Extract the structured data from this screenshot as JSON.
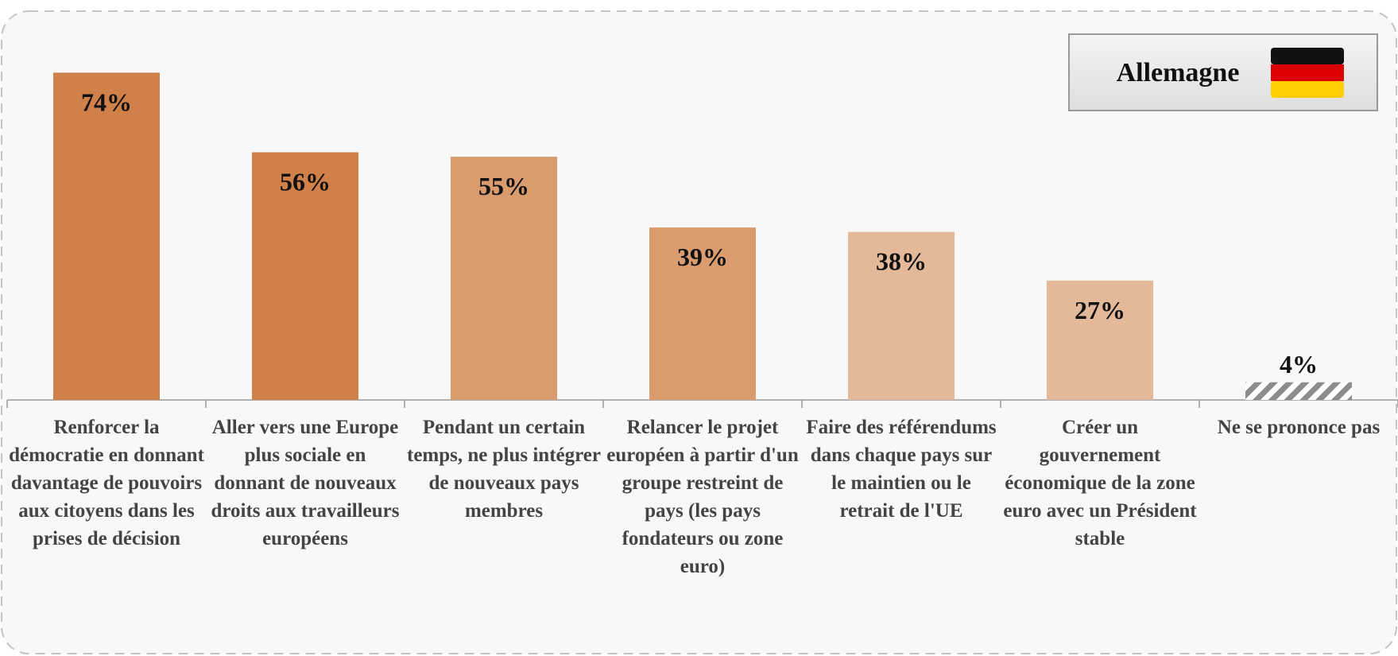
{
  "chart_data": {
    "type": "bar",
    "badge": "Allemagne",
    "categories": [
      "Renforcer la démocratie en donnant davantage de pouvoirs aux citoyens dans les prises de décision",
      "Aller vers une Europe plus sociale en donnant de nouveaux droits aux travailleurs européens",
      "Pendant un certain temps, ne plus intégrer de nouveaux pays membres",
      "Relancer le projet européen à partir d'un groupe restreint de pays (les pays fondateurs ou zone euro)",
      "Faire des référendums dans chaque pays sur le maintien ou le retrait de l'UE",
      "Créer un gouvernement économique de la zone euro avec un Président stable",
      "Ne se prononce pas"
    ],
    "values": [
      74,
      56,
      55,
      39,
      38,
      27,
      4
    ],
    "value_labels": [
      "74%",
      "56%",
      "55%",
      "39%",
      "38%",
      "27%",
      "4%"
    ],
    "colors": [
      "#d0814a",
      "#d0814a",
      "#da9b6e",
      "#da9b6e",
      "#e4b99a",
      "#e4b99a",
      "#8c8c8c"
    ],
    "bar_styles": [
      "solid",
      "solid",
      "solid",
      "solid",
      "solid",
      "solid",
      "hatch"
    ],
    "ylim": [
      0,
      80
    ]
  }
}
